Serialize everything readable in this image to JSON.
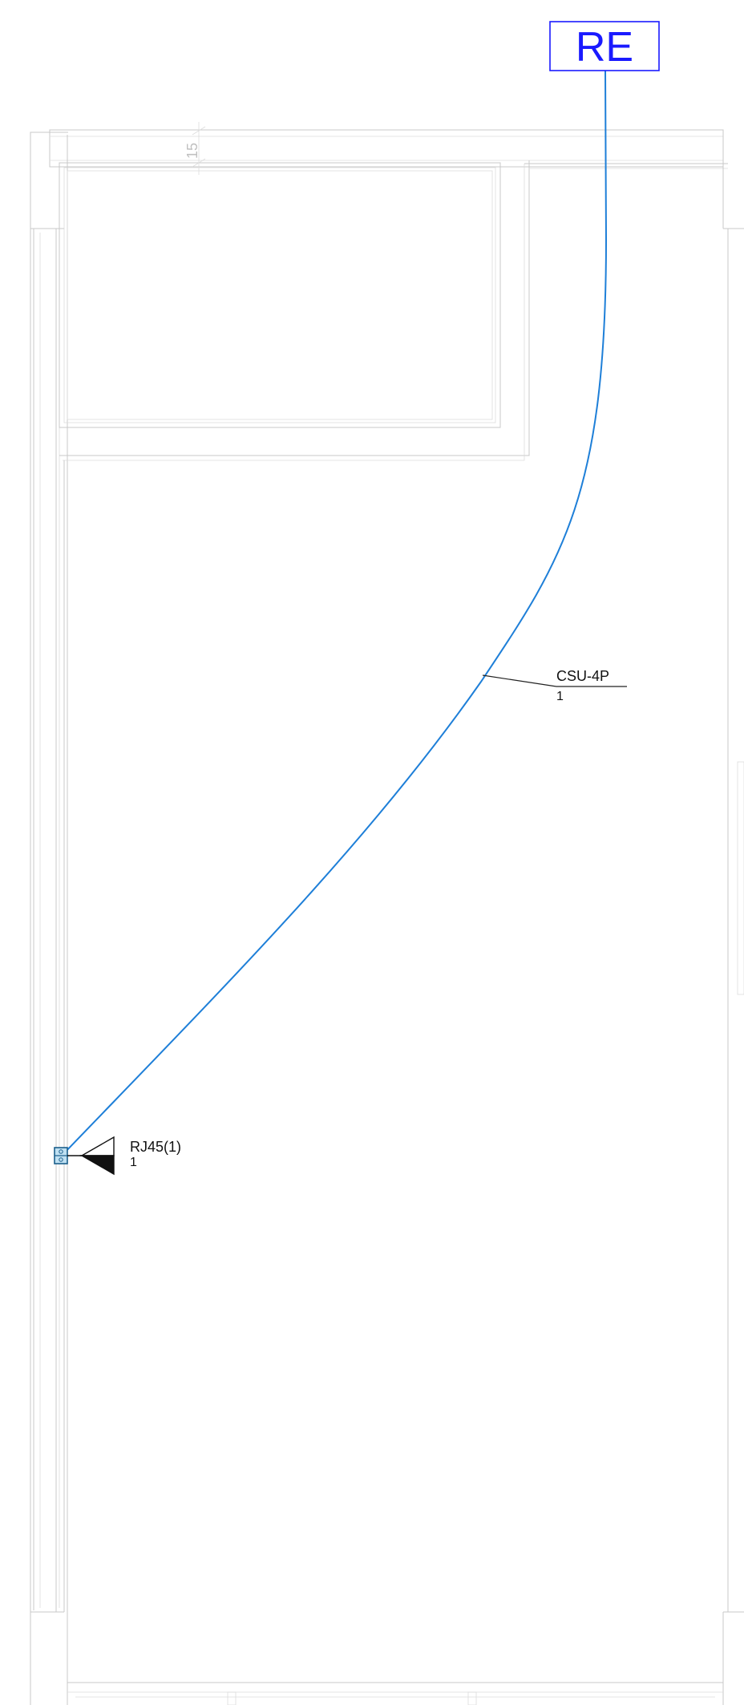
{
  "panel": {
    "label": "RE",
    "color": "#1a1aff"
  },
  "cable": {
    "type_label": "CSU-4P",
    "count_label": "1",
    "color": "#1e7fd8"
  },
  "outlet": {
    "label": "RJ45(1)",
    "count_label": "1",
    "icon": "rj45-outlet-icon"
  },
  "dimension": {
    "value": "15"
  }
}
